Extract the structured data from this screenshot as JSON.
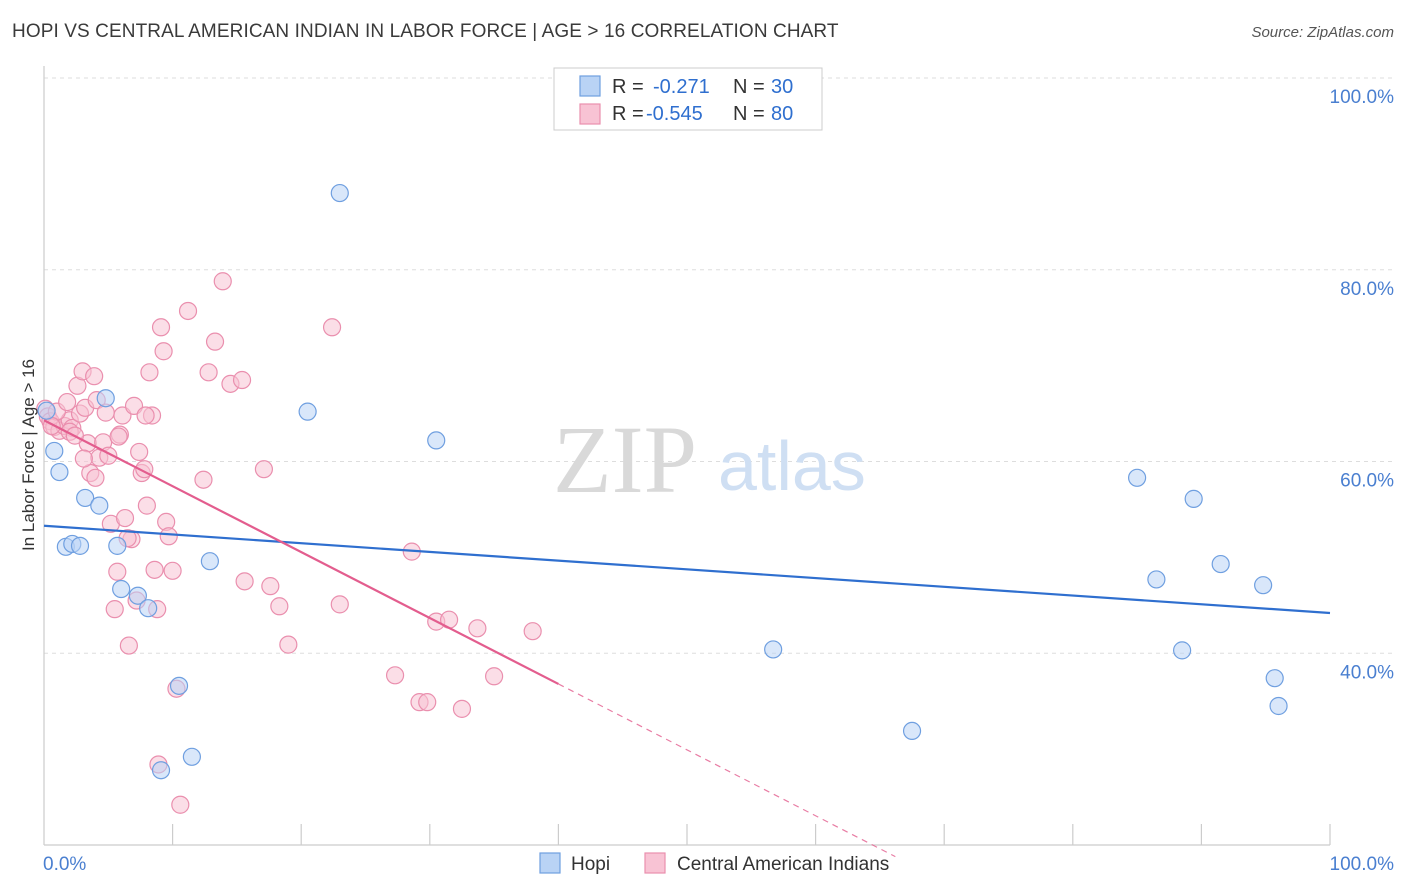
{
  "chart_data": {
    "type": "scatter",
    "title": "HOPI VS CENTRAL AMERICAN INDIAN IN LABOR FORCE | AGE > 16 CORRELATION CHART",
    "source": "Source: ZipAtlas.com",
    "xlabel": "",
    "ylabel": "In Labor Force | Age > 16",
    "xlim": [
      0,
      100
    ],
    "ylim": [
      20,
      100
    ],
    "x_tick_labels": [
      "0.0%",
      "100.0%"
    ],
    "y_ticks": [
      {
        "value": 100,
        "label": "100.0%"
      },
      {
        "value": 80,
        "label": "80.0%"
      },
      {
        "value": 60,
        "label": "60.0%"
      },
      {
        "value": 40,
        "label": "40.0%"
      }
    ],
    "watermark": {
      "zip": "ZIP",
      "atlas": "atlas"
    },
    "legend": {
      "entries": [
        {
          "r_label": "R =",
          "r_value": "-0.271",
          "n_label": "N =",
          "n_value": "30"
        },
        {
          "r_label": "R =",
          "r_value": "-0.545",
          "n_label": "N =",
          "n_value": "80"
        }
      ]
    },
    "colors": {
      "hopi_fill": "#b9d3f5",
      "hopi_stroke": "#6f9fe0",
      "hopi_line": "#2f6fcf",
      "cai_fill": "#f8c3d4",
      "cai_stroke": "#ea8fae",
      "cai_line": "#e35d8e",
      "grid": "#dddddd",
      "axis": "#cccccc"
    },
    "series": [
      {
        "name": "Hopi",
        "trend": {
          "x0": 0,
          "y0": 53.3,
          "x1": 100,
          "y1": 44.2
        },
        "points": [
          [
            0.2,
            65.3
          ],
          [
            0.8,
            61.1
          ],
          [
            1.2,
            58.9
          ],
          [
            1.7,
            51.1
          ],
          [
            2.2,
            51.4
          ],
          [
            2.8,
            51.2
          ],
          [
            3.2,
            56.2
          ],
          [
            4.3,
            55.4
          ],
          [
            4.8,
            66.6
          ],
          [
            5.7,
            51.2
          ],
          [
            6.0,
            46.7
          ],
          [
            7.3,
            46.0
          ],
          [
            8.1,
            44.7
          ],
          [
            9.1,
            27.8
          ],
          [
            10.5,
            36.6
          ],
          [
            11.5,
            29.2
          ],
          [
            12.9,
            49.6
          ],
          [
            20.5,
            65.2
          ],
          [
            23.0,
            88.0
          ],
          [
            30.5,
            62.2
          ],
          [
            56.7,
            40.4
          ],
          [
            67.5,
            31.9
          ],
          [
            85.0,
            58.3
          ],
          [
            86.5,
            47.7
          ],
          [
            88.5,
            40.3
          ],
          [
            89.4,
            56.1
          ],
          [
            91.5,
            49.3
          ],
          [
            94.8,
            47.1
          ],
          [
            95.7,
            37.4
          ],
          [
            96.0,
            34.5
          ]
        ]
      },
      {
        "name": "Central American Indians",
        "trend": {
          "x0": 0,
          "y0": 64.3,
          "x1": 40.0,
          "y1": 36.8,
          "x_dash_end": 66.2
        },
        "points": [
          [
            0.1,
            65.5
          ],
          [
            0.3,
            64.7
          ],
          [
            0.5,
            64.2
          ],
          [
            0.8,
            63.6
          ],
          [
            1.2,
            63.2
          ],
          [
            1.6,
            63.7
          ],
          [
            2.0,
            64.3
          ],
          [
            2.2,
            63.5
          ],
          [
            2.6,
            67.9
          ],
          [
            2.8,
            65.0
          ],
          [
            3.0,
            69.4
          ],
          [
            3.2,
            65.6
          ],
          [
            3.4,
            61.9
          ],
          [
            3.6,
            58.8
          ],
          [
            3.9,
            68.9
          ],
          [
            4.1,
            66.4
          ],
          [
            4.3,
            60.4
          ],
          [
            4.6,
            62.0
          ],
          [
            4.8,
            65.1
          ],
          [
            5.0,
            60.6
          ],
          [
            5.2,
            53.5
          ],
          [
            5.5,
            44.6
          ],
          [
            5.7,
            48.5
          ],
          [
            5.9,
            62.8
          ],
          [
            6.1,
            64.8
          ],
          [
            6.3,
            54.1
          ],
          [
            6.6,
            40.8
          ],
          [
            6.8,
            51.9
          ],
          [
            7.0,
            65.8
          ],
          [
            7.2,
            45.5
          ],
          [
            7.4,
            61.0
          ],
          [
            7.6,
            58.8
          ],
          [
            7.8,
            59.2
          ],
          [
            8.0,
            55.4
          ],
          [
            8.2,
            69.3
          ],
          [
            8.4,
            64.8
          ],
          [
            8.6,
            48.7
          ],
          [
            8.8,
            44.6
          ],
          [
            8.9,
            28.4
          ],
          [
            9.1,
            74.0
          ],
          [
            9.3,
            71.5
          ],
          [
            9.5,
            53.7
          ],
          [
            9.7,
            52.2
          ],
          [
            10.0,
            48.6
          ],
          [
            10.3,
            36.3
          ],
          [
            10.6,
            24.2
          ],
          [
            11.2,
            75.7
          ],
          [
            12.4,
            58.1
          ],
          [
            12.8,
            69.3
          ],
          [
            13.3,
            72.5
          ],
          [
            13.9,
            78.8
          ],
          [
            14.5,
            68.1
          ],
          [
            15.4,
            68.5
          ],
          [
            15.6,
            47.5
          ],
          [
            17.1,
            59.2
          ],
          [
            17.6,
            47.0
          ],
          [
            18.3,
            44.9
          ],
          [
            19.0,
            40.9
          ],
          [
            22.4,
            74.0
          ],
          [
            23.0,
            45.1
          ],
          [
            27.3,
            37.7
          ],
          [
            28.6,
            50.6
          ],
          [
            29.2,
            34.9
          ],
          [
            29.8,
            34.9
          ],
          [
            30.5,
            43.3
          ],
          [
            31.5,
            43.5
          ],
          [
            32.5,
            34.2
          ],
          [
            33.7,
            42.6
          ],
          [
            35.0,
            37.6
          ],
          [
            38.0,
            42.3
          ],
          [
            2.0,
            63.1
          ],
          [
            1.0,
            65.2
          ],
          [
            6.5,
            52.0
          ],
          [
            4.0,
            58.3
          ],
          [
            3.1,
            60.3
          ],
          [
            0.6,
            63.7
          ],
          [
            7.9,
            64.8
          ],
          [
            5.8,
            62.6
          ],
          [
            2.4,
            62.7
          ],
          [
            1.8,
            66.2
          ]
        ]
      }
    ]
  },
  "bottom_legend": [
    {
      "label": "Hopi"
    },
    {
      "label": "Central American Indians"
    }
  ]
}
